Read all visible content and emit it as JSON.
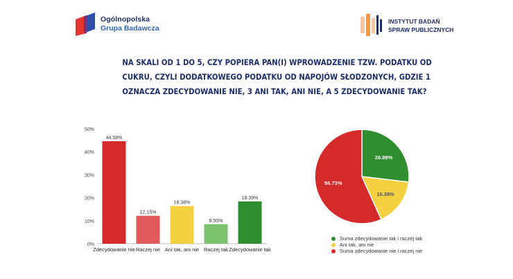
{
  "header": {
    "left_logo": {
      "line1": "Ogólnopolska",
      "line2": "Grupa Badawcza",
      "colors": {
        "red": "#e3342f",
        "blue": "#2f4fa8"
      }
    },
    "right_logo": {
      "line1": "INSTYTUT BADAŃ",
      "line2": "SPRAW PUBLICZNYCH",
      "colors": {
        "orange": "#f2994a",
        "peach": "#f6c8a8",
        "navy": "#1c2d6b"
      }
    }
  },
  "question": {
    "lines": [
      "NA SKALI OD 1 DO 5, CZY POPIERA PAN(I) WPROWADZENIE TZW. PODATKU OD",
      "CUKRU, CZYLI DODATKOWEGO PODATKU OD NAPOJÓW SŁODZONYCH, GDZIE 1",
      "OZNACZA ZDECYDOWANIE NIE, 3 ANI TAK, ANI NIE, A 5 ZDECYDOWANIE TAK?"
    ]
  },
  "chart_data": [
    {
      "type": "bar",
      "categories": [
        "Zdecydowanie nie",
        "Raczej nie",
        "Ani tak, ani nie",
        "Raczej tak",
        "Zdecydowanie tak"
      ],
      "values": [
        44.58,
        12.15,
        16.38,
        8.5,
        18.39
      ],
      "value_labels": [
        "44.58%",
        "12.15%",
        "16.38%",
        "8.50%",
        "18.39%"
      ],
      "colors": [
        "#d42a2a",
        "#e15a5a",
        "#f5d142",
        "#7cc36e",
        "#2f8f2f"
      ],
      "y_ticks": [
        "0%",
        "10%",
        "20%",
        "30%",
        "40%",
        "50%"
      ],
      "ylim": [
        0,
        50
      ],
      "grid": false
    },
    {
      "type": "pie",
      "slices": [
        {
          "label": "Suma zdecydowanie tak i raczej tak",
          "value": 26.89,
          "value_label": "26.89%",
          "color": "#2f8f2f"
        },
        {
          "label": "Ani tak, ani nie",
          "value": 16.38,
          "value_label": "16.38%",
          "color": "#f5d142"
        },
        {
          "label": "Suma zdecydowanie nie i raczej nie",
          "value": 56.73,
          "value_label": "56.73%",
          "color": "#d42a2a"
        }
      ],
      "legend_position": "bottom"
    }
  ]
}
